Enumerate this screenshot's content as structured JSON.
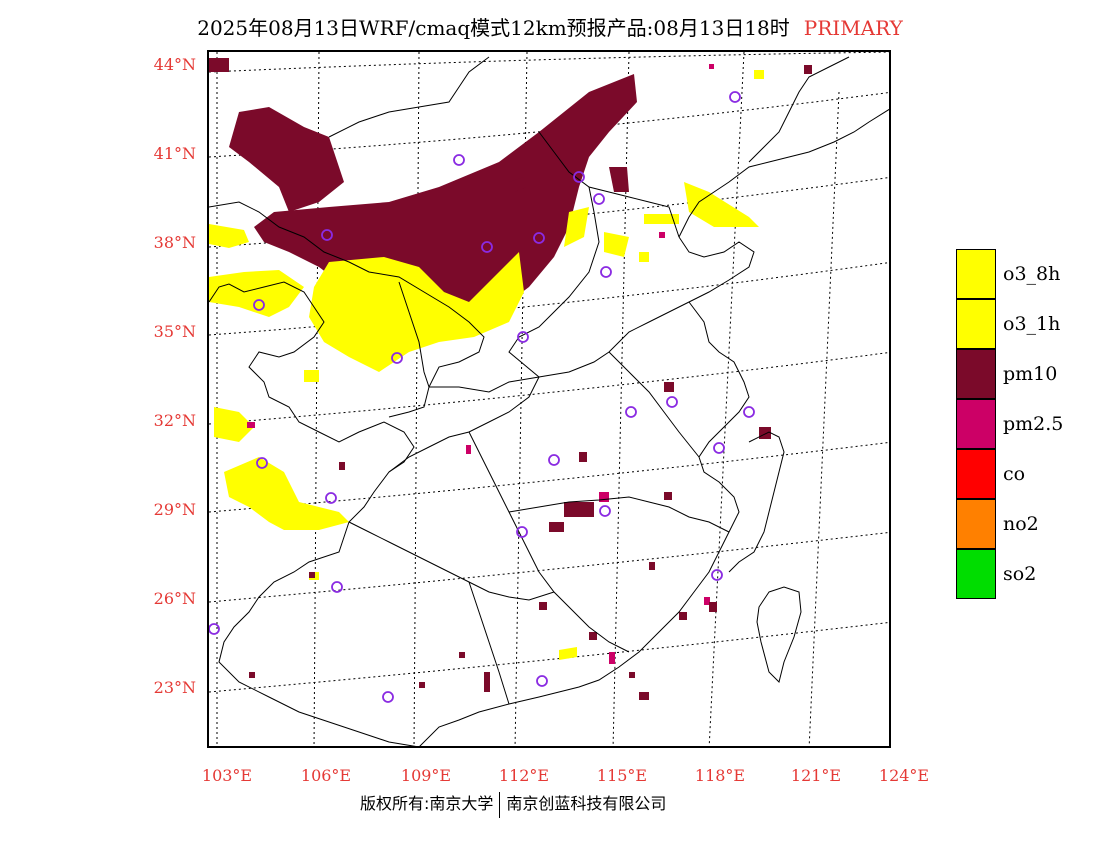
{
  "header": {
    "title": "2025年08月13日WRF/cmaq模式12km预报产品:08月13日18时",
    "primary_label": "PRIMARY"
  },
  "axes": {
    "lat_labels": [
      "44°N",
      "41°N",
      "38°N",
      "35°N",
      "32°N",
      "29°N",
      "26°N",
      "23°N"
    ],
    "lon_labels": [
      "103°E",
      "106°E",
      "109°E",
      "112°E",
      "115°E",
      "118°E",
      "121°E",
      "124°E"
    ]
  },
  "legend": [
    {
      "label": "o3_8h",
      "color": "#ffff00"
    },
    {
      "label": "o3_1h",
      "color": "#ffff00"
    },
    {
      "label": "pm10",
      "color": "#7b0a2a"
    },
    {
      "label": "pm2.5",
      "color": "#cc0066"
    },
    {
      "label": "co",
      "color": "#ff0000"
    },
    {
      "label": "no2",
      "color": "#ff8000"
    },
    {
      "label": "so2",
      "color": "#00dd00"
    }
  ],
  "footer": {
    "copyright_left": "版权所有:南京大学",
    "copyright_right": "南京创蓝科技有限公司"
  },
  "colors": {
    "o3": "#ffff00",
    "pm10": "#7b0a2a",
    "pm25": "#cc0066",
    "station_marker": "#8a2be2",
    "label_red": "#e53935"
  }
}
